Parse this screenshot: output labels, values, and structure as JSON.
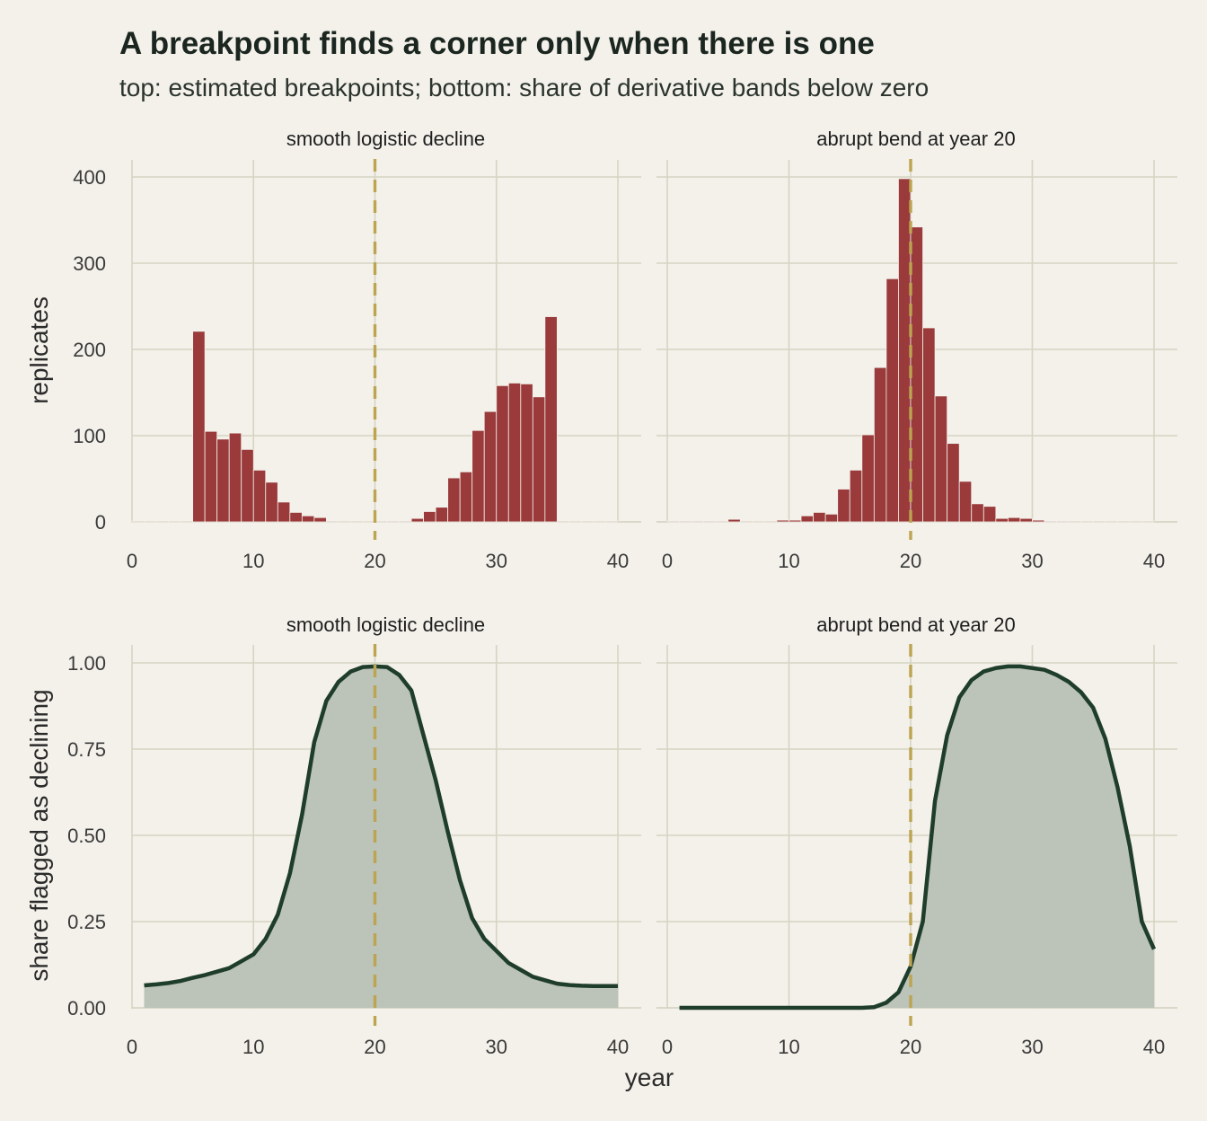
{
  "header": {
    "title": "A breakpoint finds a corner only when there is one",
    "subtitle": "top: estimated breakpoints; bottom: share of derivative bands below zero"
  },
  "axes": {
    "x_label": "year",
    "y_label_top": "replicates",
    "y_label_bottom": "share flagged as declining"
  },
  "colors": {
    "background": "#f3f1ea",
    "bar": "#9a3a3b",
    "reference_line": "#bda452",
    "curve": "#1f3d2b",
    "area": "#bcc3b8",
    "grid": "#d6d4c2"
  },
  "chart_data": [
    {
      "type": "bar",
      "panel": "top-left",
      "facet": "smooth logistic decline",
      "xlabel": "year",
      "ylabel": "replicates",
      "xlim": [
        0,
        40
      ],
      "ylim": [
        0,
        400
      ],
      "x_ticks": [
        "0",
        "10",
        "20",
        "30",
        "40"
      ],
      "y_ticks": [
        "0",
        "100",
        "200",
        "300",
        "400"
      ],
      "reference_x": 20,
      "bin_width": 1,
      "bin_starts": [
        0,
        1,
        2,
        3,
        4,
        5,
        6,
        7,
        8,
        9,
        10,
        11,
        12,
        13,
        14,
        15,
        16,
        17,
        18,
        19,
        20,
        21,
        22,
        23,
        24,
        25,
        26,
        27,
        28,
        29,
        30,
        31,
        32,
        33,
        34,
        35,
        36,
        37,
        38,
        39
      ],
      "values": [
        0,
        0,
        0,
        0,
        0,
        221,
        105,
        96,
        103,
        84,
        60,
        46,
        23,
        11,
        7,
        5,
        0,
        0,
        0,
        0,
        0,
        0,
        0,
        4,
        12,
        17,
        51,
        58,
        106,
        128,
        158,
        161,
        160,
        145,
        238,
        0,
        0,
        0,
        0,
        0
      ]
    },
    {
      "type": "bar",
      "panel": "top-right",
      "facet": "abrupt bend at year 20",
      "xlabel": "year",
      "ylabel": "replicates",
      "xlim": [
        0,
        40
      ],
      "ylim": [
        0,
        400
      ],
      "x_ticks": [
        "0",
        "10",
        "20",
        "30",
        "40"
      ],
      "y_ticks": [
        "0",
        "100",
        "200",
        "300",
        "400"
      ],
      "reference_x": 20,
      "bin_width": 1,
      "bin_starts": [
        0,
        1,
        2,
        3,
        4,
        5,
        6,
        7,
        8,
        9,
        10,
        11,
        12,
        13,
        14,
        15,
        16,
        17,
        18,
        19,
        20,
        21,
        22,
        23,
        24,
        25,
        26,
        27,
        28,
        29,
        30,
        31,
        32,
        33,
        34,
        35,
        36,
        37,
        38,
        39
      ],
      "values": [
        0,
        0,
        0,
        0,
        0,
        3,
        0,
        0,
        0,
        2,
        2,
        7,
        11,
        9,
        38,
        60,
        101,
        179,
        282,
        398,
        342,
        225,
        146,
        91,
        47,
        21,
        18,
        4,
        5,
        4,
        2,
        0,
        0,
        0,
        0,
        0,
        0,
        0,
        0,
        0
      ]
    },
    {
      "type": "area",
      "panel": "bottom-left",
      "facet": "smooth logistic decline",
      "xlabel": "year",
      "ylabel": "share flagged as declining",
      "xlim": [
        0,
        40
      ],
      "ylim": [
        0,
        1
      ],
      "x_ticks": [
        "0",
        "10",
        "20",
        "30",
        "40"
      ],
      "y_ticks": [
        "0.00",
        "0.25",
        "0.50",
        "0.75",
        "1.00"
      ],
      "reference_x": 20,
      "x": [
        1,
        2,
        3,
        4,
        5,
        6,
        7,
        8,
        9,
        10,
        11,
        12,
        13,
        14,
        15,
        16,
        17,
        18,
        19,
        20,
        21,
        22,
        23,
        24,
        25,
        26,
        27,
        28,
        29,
        30,
        31,
        32,
        33,
        34,
        35,
        36,
        37,
        38,
        39,
        40
      ],
      "y": [
        0.065,
        0.068,
        0.072,
        0.078,
        0.087,
        0.095,
        0.105,
        0.115,
        0.135,
        0.155,
        0.2,
        0.27,
        0.39,
        0.56,
        0.77,
        0.89,
        0.945,
        0.975,
        0.988,
        0.99,
        0.988,
        0.965,
        0.92,
        0.79,
        0.66,
        0.51,
        0.37,
        0.26,
        0.2,
        0.165,
        0.13,
        0.11,
        0.09,
        0.08,
        0.07,
        0.066,
        0.064,
        0.063,
        0.063,
        0.063
      ]
    },
    {
      "type": "area",
      "panel": "bottom-right",
      "facet": "abrupt bend at year 20",
      "xlabel": "year",
      "ylabel": "share flagged as declining",
      "xlim": [
        0,
        40
      ],
      "ylim": [
        0,
        1
      ],
      "x_ticks": [
        "0",
        "10",
        "20",
        "30",
        "40"
      ],
      "y_ticks": [
        "0.00",
        "0.25",
        "0.50",
        "0.75",
        "1.00"
      ],
      "reference_x": 20,
      "x": [
        1,
        2,
        3,
        4,
        5,
        6,
        7,
        8,
        9,
        10,
        11,
        12,
        13,
        14,
        15,
        16,
        17,
        18,
        19,
        20,
        21,
        22,
        23,
        24,
        25,
        26,
        27,
        28,
        29,
        30,
        31,
        32,
        33,
        34,
        35,
        36,
        37,
        38,
        39,
        40
      ],
      "y": [
        0,
        0,
        0,
        0,
        0,
        0,
        0,
        0,
        0,
        0,
        0,
        0,
        0,
        0,
        0,
        0,
        0.002,
        0.015,
        0.045,
        0.12,
        0.25,
        0.6,
        0.79,
        0.9,
        0.95,
        0.975,
        0.985,
        0.99,
        0.99,
        0.985,
        0.98,
        0.965,
        0.945,
        0.915,
        0.87,
        0.78,
        0.64,
        0.47,
        0.25,
        0.17
      ]
    }
  ]
}
